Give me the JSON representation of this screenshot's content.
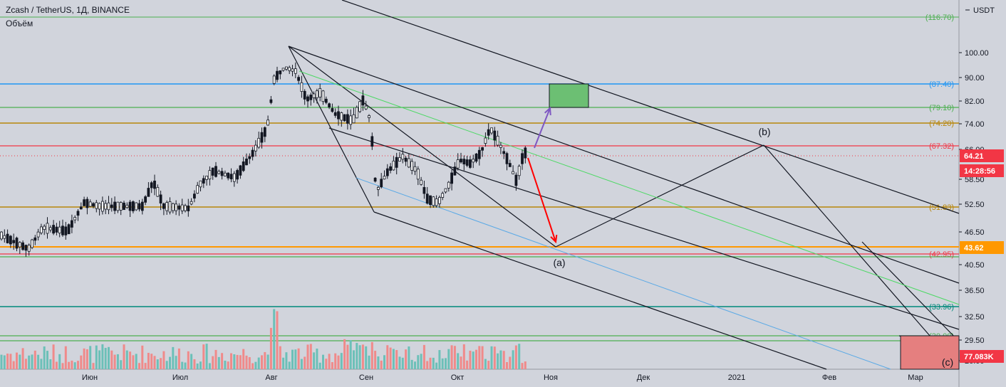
{
  "header": {
    "symbol_line": "Zcash / TetherUS, 1Д, BINANCE",
    "volume_label": "Объём"
  },
  "price_axis": {
    "currency": "USDT",
    "ticks": [
      "100.00",
      "90.00",
      "82.00",
      "74.00",
      "66.00",
      "58.50",
      "52.50",
      "46.50",
      "40.50",
      "36.50",
      "32.50",
      "29.50",
      "26.00"
    ]
  },
  "time_axis": {
    "labels": [
      "Июн",
      "Июл",
      "Авг",
      "Сен",
      "Окт",
      "Ноя",
      "Дек",
      "2021",
      "Фев",
      "Мар"
    ]
  },
  "levels": [
    {
      "label": "(116.70)",
      "color": "#4caf50"
    },
    {
      "label": "(87.40)",
      "color": "#2196f3"
    },
    {
      "label": "(79.10)",
      "color": "#4caf50"
    },
    {
      "label": "(74.20)",
      "color": "#b8860b"
    },
    {
      "label": "(67.32)",
      "color": "#f23645"
    },
    {
      "label": "(51.83)",
      "color": "#b8860b"
    },
    {
      "label": "(42.95)",
      "color": "#f23645"
    },
    {
      "label": "(33.96)",
      "color": "#00897b"
    },
    {
      "label": "(30.00)",
      "color": "#4caf50"
    }
  ],
  "badges": {
    "price": "64.21",
    "countdown": "14:28:56",
    "level_4362": "43.62",
    "volume": "77.083K"
  },
  "waves": {
    "a": "(a)",
    "b": "(b)",
    "c": "(c)"
  },
  "colors": {
    "background": "#d1d4dc",
    "up_candle": "#26a69a",
    "down_candle": "#000000",
    "vol_up": "#6cc0b8",
    "vol_down": "#f08a8a",
    "target_box": "#6cbf73",
    "red_arrow": "#ff0000",
    "purple_arrow": "#7e57c2"
  }
}
